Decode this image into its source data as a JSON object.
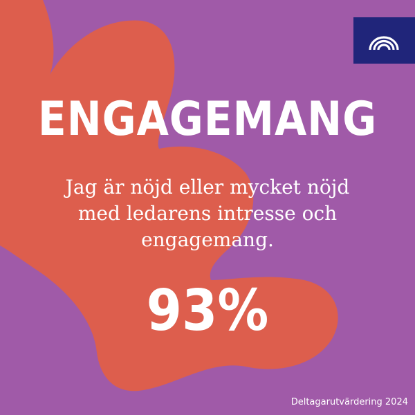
{
  "colors": {
    "background": "#a05aa8",
    "blob": "#dd5e4d",
    "logo_background": "#20257a",
    "text": "#ffffff"
  },
  "logo": {
    "icon": "rainbow-arcs-logo-icon"
  },
  "headline": "ENGAGEMANG",
  "statement": {
    "line1": "Jag är nöjd eller mycket nöjd",
    "line2": "med ledarens intresse och",
    "line3": "engagemang."
  },
  "result": "93%",
  "footer": "Deltagarutvärdering 2024"
}
